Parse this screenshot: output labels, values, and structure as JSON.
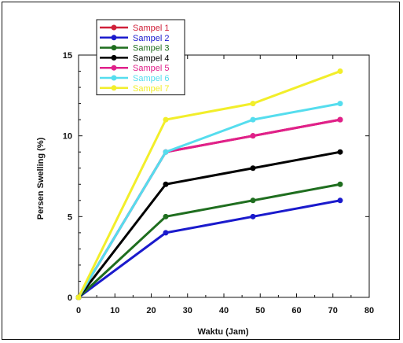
{
  "chart_data": {
    "type": "line",
    "xlabel": "Waktu (Jam)",
    "ylabel": "Persen Swelling (%)",
    "xlim": [
      0,
      80
    ],
    "ylim": [
      0,
      15
    ],
    "x_ticks": [
      "0",
      "10",
      "20",
      "30",
      "40",
      "50",
      "60",
      "70",
      "80"
    ],
    "y_ticks": [
      "0",
      "5",
      "10",
      "15"
    ],
    "grid": false,
    "legend_position": "top-left",
    "x": [
      0,
      24,
      48,
      72
    ],
    "series": [
      {
        "name": "Sampel 1",
        "color": "#d0203a",
        "values": [
          0,
          9,
          10,
          11
        ]
      },
      {
        "name": "Sampel 2",
        "color": "#1a1acc",
        "values": [
          0,
          4,
          5,
          6
        ]
      },
      {
        "name": "Sampel 3",
        "color": "#1f6e1f",
        "values": [
          0,
          5,
          6,
          7
        ]
      },
      {
        "name": "Sampel 4",
        "color": "#000000",
        "values": [
          0,
          7,
          8,
          9
        ]
      },
      {
        "name": "Sampel 5",
        "color": "#e0208a",
        "values": [
          0,
          9,
          10,
          11
        ]
      },
      {
        "name": "Sampel 6",
        "color": "#55ddee",
        "values": [
          0,
          9,
          11,
          12
        ]
      },
      {
        "name": "Sampel 7",
        "color": "#f2ee2a",
        "values": [
          0,
          11,
          12,
          14
        ]
      }
    ]
  }
}
